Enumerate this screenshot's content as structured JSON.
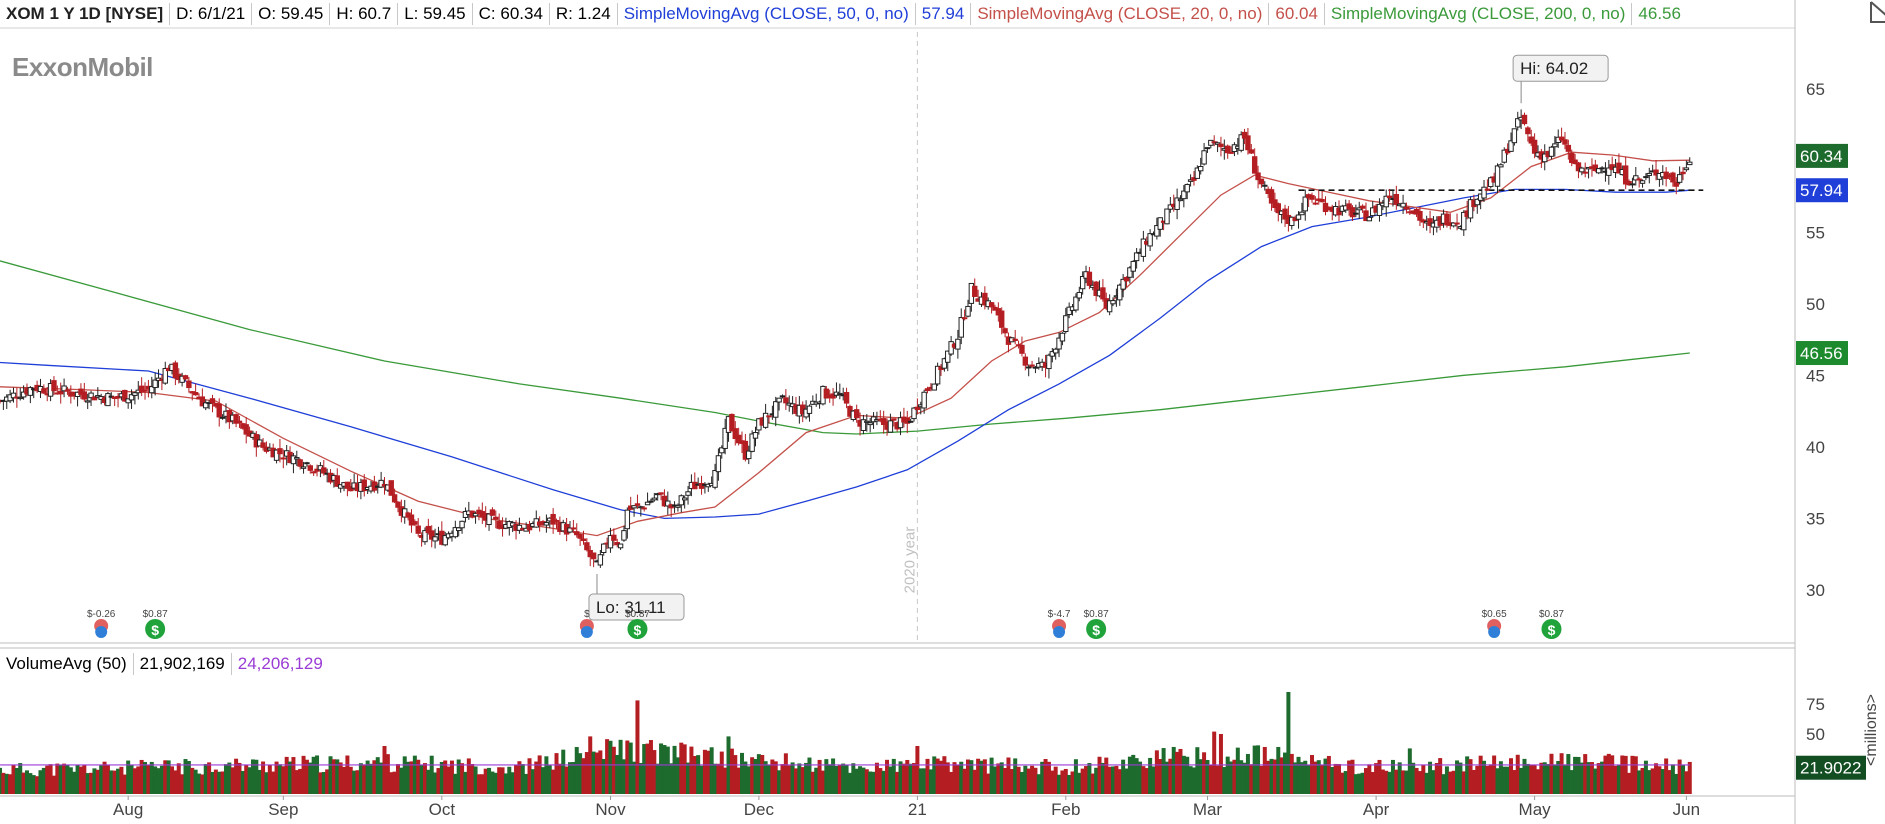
{
  "header": {
    "symbol": "XOM 1 Y 1D [NYSE]",
    "date": "D: 6/1/21",
    "open": "O: 59.45",
    "high": "H: 60.7",
    "low": "L: 59.45",
    "close": "C: 60.34",
    "range": "R: 1.24",
    "sma50_label": "SimpleMovingAvg (CLOSE, 50, 0, no)",
    "sma50_value": "57.94",
    "sma20_label": "SimpleMovingAvg (CLOSE, 20, 0, no)",
    "sma20_value": "60.04",
    "sma200_label": "SimpleMovingAvg (CLOSE, 200, 0, no)",
    "sma200_value": "46.56"
  },
  "logo_text": "ExxonMobil",
  "volume_header": {
    "label": "VolumeAvg (50)",
    "volume": "21,902,169",
    "avg": "24,206,129"
  },
  "colors": {
    "up": "#1e6b2e",
    "down": "#b41e23",
    "sma50": "#1f3fd8",
    "sma20": "#c4504a",
    "sma200": "#3a9a3a",
    "vol_avg": "#9a3bd6",
    "grid_text": "#444444"
  },
  "chart_data": [
    {
      "type": "candlestick",
      "title": "XOM 1 Y 1D [NYSE]",
      "ylim": [
        26.5,
        69
      ],
      "y_ticks": [
        30,
        35,
        40,
        45,
        50,
        55,
        60,
        65
      ],
      "x_tick_labels": [
        "Aug",
        "Sep",
        "Oct",
        "Nov",
        "Dec",
        "21",
        "Feb",
        "Mar",
        "Apr",
        "May",
        "Jun"
      ],
      "x_ticks": [
        24,
        70,
        117,
        167,
        211,
        258,
        302,
        344,
        394,
        441,
        486
      ],
      "x_range": [
        -14,
        493
      ],
      "year_divider": {
        "x": 258,
        "label": "2020 year"
      },
      "hi_label": "Hi: 64.02",
      "hi_point": [
        437,
        64.02
      ],
      "lo_label": "Lo: 31.11",
      "lo_point": [
        163,
        31.11
      ],
      "resistance_level": 57.94,
      "resistance_range": [
        371,
        491
      ],
      "price_labels": [
        {
          "text": "60.34",
          "value": 60.34,
          "color": "#1e6b2e"
        },
        {
          "text": "57.94",
          "value": 57.94,
          "color": "#1f3fd8"
        },
        {
          "text": "46.56",
          "value": 46.56,
          "color": "#1e8a2e"
        }
      ],
      "ohlc_anchors": [
        {
          "x": -14,
          "c": 43.2
        },
        {
          "x": -4,
          "c": 44.2
        },
        {
          "x": 7,
          "c": 43.8
        },
        {
          "x": 20,
          "c": 43.4
        },
        {
          "x": 30,
          "c": 44.0
        },
        {
          "x": 36,
          "c": 45.6
        },
        {
          "x": 46,
          "c": 43.2
        },
        {
          "x": 55,
          "c": 41.8
        },
        {
          "x": 64,
          "c": 40.0
        },
        {
          "x": 76,
          "c": 39.0
        },
        {
          "x": 82,
          "c": 38.2
        },
        {
          "x": 90,
          "c": 37.0
        },
        {
          "x": 100,
          "c": 37.6
        },
        {
          "x": 104,
          "c": 36.0
        },
        {
          "x": 110,
          "c": 33.8
        },
        {
          "x": 117,
          "c": 33.6
        },
        {
          "x": 125,
          "c": 35.4
        },
        {
          "x": 133,
          "c": 34.7
        },
        {
          "x": 142,
          "c": 34.4
        },
        {
          "x": 150,
          "c": 34.8
        },
        {
          "x": 157,
          "c": 33.8
        },
        {
          "x": 163,
          "c": 31.6
        },
        {
          "x": 167,
          "c": 34.0
        },
        {
          "x": 170,
          "c": 33.1
        },
        {
          "x": 172,
          "c": 35.6
        },
        {
          "x": 176,
          "c": 35.8
        },
        {
          "x": 181,
          "c": 36.6
        },
        {
          "x": 186,
          "c": 35.6
        },
        {
          "x": 191,
          "c": 37.2
        },
        {
          "x": 198,
          "c": 38.0
        },
        {
          "x": 202,
          "c": 41.8
        },
        {
          "x": 207,
          "c": 39.5
        },
        {
          "x": 211,
          "c": 41.6
        },
        {
          "x": 218,
          "c": 43.2
        },
        {
          "x": 224,
          "c": 42.4
        },
        {
          "x": 230,
          "c": 43.8
        },
        {
          "x": 235,
          "c": 43.6
        },
        {
          "x": 240,
          "c": 41.8
        },
        {
          "x": 248,
          "c": 41.6
        },
        {
          "x": 255,
          "c": 41.6
        },
        {
          "x": 258,
          "c": 43.0
        },
        {
          "x": 264,
          "c": 45.2
        },
        {
          "x": 270,
          "c": 47.8
        },
        {
          "x": 274,
          "c": 51.0
        },
        {
          "x": 280,
          "c": 49.8
        },
        {
          "x": 285,
          "c": 47.6
        },
        {
          "x": 291,
          "c": 45.8
        },
        {
          "x": 296,
          "c": 45.6
        },
        {
          "x": 302,
          "c": 48.8
        },
        {
          "x": 308,
          "c": 52.0
        },
        {
          "x": 314,
          "c": 49.8
        },
        {
          "x": 320,
          "c": 52.0
        },
        {
          "x": 326,
          "c": 54.5
        },
        {
          "x": 332,
          "c": 56.2
        },
        {
          "x": 336,
          "c": 57.4
        },
        {
          "x": 340,
          "c": 58.6
        },
        {
          "x": 344,
          "c": 61.2
        },
        {
          "x": 350,
          "c": 60.8
        },
        {
          "x": 355,
          "c": 61.6
        },
        {
          "x": 359,
          "c": 58.8
        },
        {
          "x": 364,
          "c": 56.4
        },
        {
          "x": 369,
          "c": 55.8
        },
        {
          "x": 374,
          "c": 57.4
        },
        {
          "x": 380,
          "c": 56.8
        },
        {
          "x": 386,
          "c": 56.4
        },
        {
          "x": 392,
          "c": 56.2
        },
        {
          "x": 398,
          "c": 57.6
        },
        {
          "x": 404,
          "c": 56.8
        },
        {
          "x": 410,
          "c": 55.2
        },
        {
          "x": 414,
          "c": 56.0
        },
        {
          "x": 419,
          "c": 55.8
        },
        {
          "x": 424,
          "c": 57.6
        },
        {
          "x": 429,
          "c": 58.6
        },
        {
          "x": 433,
          "c": 61.0
        },
        {
          "x": 437,
          "c": 63.0
        },
        {
          "x": 441,
          "c": 60.6
        },
        {
          "x": 445,
          "c": 60.4
        },
        {
          "x": 449,
          "c": 61.6
        },
        {
          "x": 453,
          "c": 59.4
        },
        {
          "x": 458,
          "c": 59.2
        },
        {
          "x": 463,
          "c": 59.8
        },
        {
          "x": 468,
          "c": 58.8
        },
        {
          "x": 473,
          "c": 58.6
        },
        {
          "x": 478,
          "c": 59.4
        },
        {
          "x": 483,
          "c": 58.4
        },
        {
          "x": 487,
          "c": 60.34
        }
      ],
      "sma50": [
        {
          "x": -14,
          "y": 45.9
        },
        {
          "x": 0,
          "y": 45.7
        },
        {
          "x": 30,
          "y": 45.3
        },
        {
          "x": 60,
          "y": 43.4
        },
        {
          "x": 90,
          "y": 41.4
        },
        {
          "x": 120,
          "y": 39.3
        },
        {
          "x": 150,
          "y": 37.0
        },
        {
          "x": 170,
          "y": 35.6
        },
        {
          "x": 183,
          "y": 35.0
        },
        {
          "x": 198,
          "y": 35.1
        },
        {
          "x": 211,
          "y": 35.3
        },
        {
          "x": 225,
          "y": 36.2
        },
        {
          "x": 240,
          "y": 37.2
        },
        {
          "x": 255,
          "y": 38.4
        },
        {
          "x": 270,
          "y": 40.4
        },
        {
          "x": 285,
          "y": 42.6
        },
        {
          "x": 300,
          "y": 44.4
        },
        {
          "x": 315,
          "y": 46.4
        },
        {
          "x": 330,
          "y": 49.0
        },
        {
          "x": 344,
          "y": 51.6
        },
        {
          "x": 360,
          "y": 54.0
        },
        {
          "x": 375,
          "y": 55.4
        },
        {
          "x": 390,
          "y": 56.0
        },
        {
          "x": 405,
          "y": 56.7
        },
        {
          "x": 420,
          "y": 57.4
        },
        {
          "x": 435,
          "y": 58.0
        },
        {
          "x": 450,
          "y": 58.0
        },
        {
          "x": 465,
          "y": 57.8
        },
        {
          "x": 480,
          "y": 57.8
        },
        {
          "x": 487,
          "y": 57.94
        }
      ],
      "sma20": [
        {
          "x": -14,
          "y": 44.2
        },
        {
          "x": 10,
          "y": 44.0
        },
        {
          "x": 30,
          "y": 43.8
        },
        {
          "x": 50,
          "y": 43.2
        },
        {
          "x": 70,
          "y": 40.6
        },
        {
          "x": 90,
          "y": 38.3
        },
        {
          "x": 110,
          "y": 36.2
        },
        {
          "x": 130,
          "y": 35.0
        },
        {
          "x": 150,
          "y": 34.3
        },
        {
          "x": 163,
          "y": 33.8
        },
        {
          "x": 175,
          "y": 34.8
        },
        {
          "x": 188,
          "y": 35.4
        },
        {
          "x": 198,
          "y": 35.8
        },
        {
          "x": 211,
          "y": 38.2
        },
        {
          "x": 225,
          "y": 41.0
        },
        {
          "x": 240,
          "y": 42.2
        },
        {
          "x": 255,
          "y": 42.0
        },
        {
          "x": 268,
          "y": 43.4
        },
        {
          "x": 280,
          "y": 46.0
        },
        {
          "x": 290,
          "y": 47.4
        },
        {
          "x": 300,
          "y": 48.0
        },
        {
          "x": 312,
          "y": 49.4
        },
        {
          "x": 324,
          "y": 52.0
        },
        {
          "x": 336,
          "y": 54.8
        },
        {
          "x": 348,
          "y": 57.6
        },
        {
          "x": 358,
          "y": 59.0
        },
        {
          "x": 368,
          "y": 58.4
        },
        {
          "x": 380,
          "y": 57.8
        },
        {
          "x": 392,
          "y": 57.2
        },
        {
          "x": 404,
          "y": 56.8
        },
        {
          "x": 416,
          "y": 56.4
        },
        {
          "x": 428,
          "y": 57.4
        },
        {
          "x": 440,
          "y": 59.6
        },
        {
          "x": 452,
          "y": 60.6
        },
        {
          "x": 464,
          "y": 60.4
        },
        {
          "x": 476,
          "y": 60.0
        },
        {
          "x": 487,
          "y": 60.04
        }
      ],
      "sma200": [
        {
          "x": -14,
          "y": 53.0
        },
        {
          "x": 20,
          "y": 50.8
        },
        {
          "x": 60,
          "y": 48.2
        },
        {
          "x": 100,
          "y": 46.0
        },
        {
          "x": 140,
          "y": 44.4
        },
        {
          "x": 170,
          "y": 43.4
        },
        {
          "x": 198,
          "y": 42.4
        },
        {
          "x": 211,
          "y": 41.8
        },
        {
          "x": 230,
          "y": 41.0
        },
        {
          "x": 240,
          "y": 40.9
        },
        {
          "x": 258,
          "y": 41.1
        },
        {
          "x": 280,
          "y": 41.6
        },
        {
          "x": 302,
          "y": 42.0
        },
        {
          "x": 330,
          "y": 42.6
        },
        {
          "x": 360,
          "y": 43.4
        },
        {
          "x": 390,
          "y": 44.2
        },
        {
          "x": 420,
          "y": 45.0
        },
        {
          "x": 450,
          "y": 45.6
        },
        {
          "x": 487,
          "y": 46.56
        }
      ],
      "events": [
        {
          "x": 16,
          "kind": "earnings",
          "text": "$-0.26"
        },
        {
          "x": 32,
          "kind": "dividend",
          "text": "$0.87"
        },
        {
          "x": 160,
          "kind": "earnings",
          "text": "$"
        },
        {
          "x": 175,
          "kind": "dividend",
          "text": "$0.87"
        },
        {
          "x": 300,
          "kind": "earnings",
          "text": "$-4.7"
        },
        {
          "x": 311,
          "kind": "dividend",
          "text": "$0.87"
        },
        {
          "x": 429,
          "kind": "earnings",
          "text": "$0.65"
        },
        {
          "x": 446,
          "kind": "dividend",
          "text": "$0.87"
        }
      ]
    },
    {
      "type": "bar",
      "title": "VolumeAvg (50)",
      "ylabel": "<millions>",
      "ylim": [
        0,
        95
      ],
      "y_ticks": [
        25,
        50,
        75
      ],
      "avg_value": 24.2,
      "last_label": "21.9022",
      "volume_anchors": [
        {
          "x": -14,
          "v": 20
        },
        {
          "x": 30,
          "v": 22
        },
        {
          "x": 60,
          "v": 24
        },
        {
          "x": 100,
          "v": 26
        },
        {
          "x": 140,
          "v": 22
        },
        {
          "x": 170,
          "v": 38
        },
        {
          "x": 200,
          "v": 30
        },
        {
          "x": 240,
          "v": 22
        },
        {
          "x": 270,
          "v": 25
        },
        {
          "x": 302,
          "v": 22
        },
        {
          "x": 330,
          "v": 30
        },
        {
          "x": 360,
          "v": 32
        },
        {
          "x": 390,
          "v": 22
        },
        {
          "x": 420,
          "v": 24
        },
        {
          "x": 450,
          "v": 28
        },
        {
          "x": 487,
          "v": 21.9
        }
      ],
      "volume_spikes": [
        {
          "x": 36,
          "v": 28
        },
        {
          "x": 100,
          "v": 40
        },
        {
          "x": 161,
          "v": 48
        },
        {
          "x": 175,
          "v": 78
        },
        {
          "x": 178,
          "v": 42
        },
        {
          "x": 202,
          "v": 48
        },
        {
          "x": 258,
          "v": 40
        },
        {
          "x": 346,
          "v": 52
        },
        {
          "x": 348,
          "v": 50
        },
        {
          "x": 368,
          "v": 85
        },
        {
          "x": 404,
          "v": 38
        },
        {
          "x": 449,
          "v": 34
        }
      ]
    }
  ]
}
